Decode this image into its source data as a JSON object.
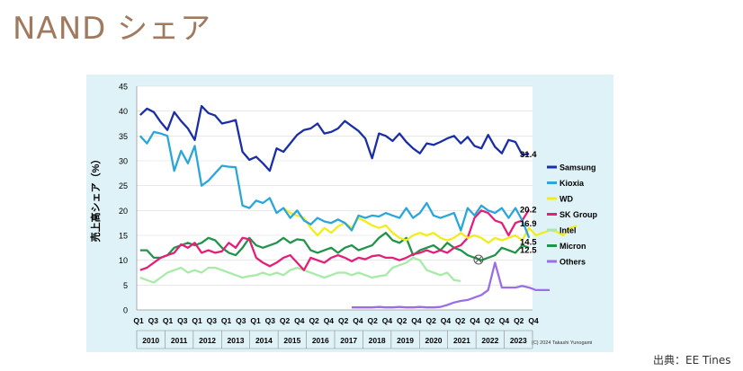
{
  "page": {
    "title": "NAND シェア",
    "source": "出典：EE Tines"
  },
  "chart_data": {
    "type": "line",
    "title": "NAND シェア",
    "ylabel": "売上高シェア（%）",
    "ylim": [
      0,
      45
    ],
    "yticks": [
      "0",
      "5",
      "10",
      "15",
      "20",
      "25",
      "30",
      "35",
      "40",
      "45"
    ],
    "quarter_labels": [
      "Q1",
      "Q3",
      "Q1",
      "Q3",
      "Q1",
      "Q3",
      "Q1",
      "Q3",
      "Q1",
      "Q3",
      "Q2",
      "Q4",
      "Q2",
      "Q4",
      "Q2",
      "Q4",
      "Q2",
      "Q4",
      "Q2",
      "Q4",
      "Q2",
      "Q4",
      "Q2",
      "Q4",
      "Q2",
      "Q4",
      "Q2",
      "Q4"
    ],
    "years": [
      "2010",
      "2011",
      "2012",
      "2013",
      "2014",
      "2015",
      "2016",
      "2017",
      "2018",
      "2019",
      "2020",
      "2021",
      "2022",
      "2023"
    ],
    "copyright": "(C) 2024 Takashi Yunogami",
    "legend_position": "right",
    "grid": true,
    "series": [
      {
        "name": "Samsung",
        "color": "#1a2ea8",
        "end_label": "31.4",
        "start": 0,
        "values": [
          39.2,
          40.5,
          39.8,
          37.8,
          36.2,
          39.8,
          38.0,
          36.5,
          34.2,
          41.0,
          39.6,
          39.1,
          37.5,
          37.8,
          38.2,
          31.8,
          30.2,
          30.8,
          29.5,
          28.0,
          32.5,
          31.8,
          33.5,
          35.2,
          36.2,
          36.5,
          37.5,
          35.5,
          35.8,
          36.5,
          38.0,
          37.0,
          36.0,
          34.5,
          30.5,
          35.5,
          35.0,
          34.0,
          35.5,
          33.8,
          32.5,
          31.5,
          33.5,
          33.2,
          33.8,
          34.5,
          35.0,
          33.5,
          34.8,
          33.0,
          32.5,
          35.2,
          32.8,
          31.5,
          34.2,
          33.8,
          31.2,
          31.4
        ]
      },
      {
        "name": "Kioxia",
        "color": "#2aa6d9",
        "end_label": "14.5",
        "start": 0,
        "values": [
          35.0,
          33.5,
          35.8,
          35.5,
          35.0,
          28.0,
          32.0,
          29.5,
          33.0,
          25.0,
          26.0,
          27.5,
          29.0,
          28.8,
          28.7,
          21.0,
          20.5,
          22.0,
          21.5,
          22.5,
          19.5,
          20.5,
          18.5,
          20.0,
          18.0,
          17.2,
          18.5,
          17.8,
          17.5,
          18.2,
          17.5,
          16.0,
          19.0,
          18.5,
          19.0,
          18.8,
          19.5,
          19.0,
          18.5,
          20.5,
          18.5,
          19.5,
          21.5,
          19.0,
          18.5,
          19.0,
          19.5,
          16.0,
          20.5,
          19.0,
          21.0,
          20.0,
          19.5,
          20.5,
          18.5,
          20.5,
          18.0,
          14.5
        ]
      },
      {
        "name": "WD",
        "color": "#f0ee1a",
        "end_label": "16.9",
        "start": 21,
        "values": [
          20.5,
          19.5,
          19.0,
          18.5,
          16.5,
          15.0,
          16.5,
          15.5,
          16.8,
          17.5,
          16.5,
          18.5,
          17.8,
          17.0,
          16.5,
          17.0,
          15.5,
          14.5,
          14.0,
          15.0,
          15.5,
          15.0,
          15.5,
          14.5,
          14.0,
          14.5,
          15.5,
          14.5,
          15.0,
          14.5,
          13.5,
          14.5,
          14.0,
          14.5,
          15.0,
          14.0,
          16.5,
          15.0,
          15.5,
          16.0,
          15.8,
          15.0,
          16.5,
          16.9
        ]
      },
      {
        "name": "SK Group",
        "color": "#e51e78",
        "end_label": "20.2",
        "start": 0,
        "values": [
          8.0,
          8.5,
          9.5,
          10.5,
          11.0,
          11.5,
          13.2,
          12.5,
          13.5,
          11.5,
          12.0,
          11.5,
          11.8,
          13.5,
          12.5,
          14.5,
          14.2,
          10.5,
          9.5,
          8.8,
          9.5,
          10.5,
          11.0,
          9.5,
          8.0,
          10.5,
          10.0,
          9.5,
          10.5,
          11.0,
          10.5,
          9.8,
          10.5,
          10.2,
          10.8,
          11.0,
          10.5,
          10.5,
          10.0,
          10.5,
          11.2,
          11.5,
          12.0,
          11.5,
          12.0,
          11.5,
          12.5,
          13.0,
          14.5,
          18.5,
          20.0,
          19.5,
          18.0,
          17.5,
          15.0,
          17.5,
          18.0,
          20.2
        ]
      },
      {
        "name": "Intel",
        "color": "#a8eba8",
        "end_label": "",
        "start": 0,
        "values": [
          6.5,
          6.0,
          5.5,
          6.5,
          7.5,
          8.0,
          8.5,
          7.5,
          8.0,
          7.5,
          8.5,
          8.5,
          8.0,
          7.5,
          7.0,
          6.5,
          6.8,
          7.0,
          7.5,
          7.0,
          7.5,
          7.0,
          8.0,
          8.5,
          8.0,
          7.5,
          7.0,
          6.5,
          7.0,
          7.5,
          7.5,
          7.0,
          7.5,
          7.0,
          6.5,
          6.8,
          7.0,
          8.5,
          9.0,
          9.5,
          10.5,
          10.0,
          8.0,
          7.5,
          7.0,
          7.5,
          6.0,
          5.8
        ]
      },
      {
        "name": "Micron",
        "color": "#21944a",
        "end_label": "12.5",
        "start": 0,
        "values": [
          12.0,
          12.0,
          10.5,
          10.5,
          11.0,
          12.5,
          13.0,
          13.5,
          13.0,
          13.5,
          14.5,
          14.0,
          12.5,
          11.5,
          11.0,
          12.5,
          14.5,
          13.0,
          12.5,
          13.0,
          13.5,
          14.5,
          13.5,
          14.2,
          14.0,
          12.0,
          11.5,
          12.0,
          12.5,
          11.5,
          12.5,
          13.0,
          12.0,
          12.5,
          13.0,
          14.5,
          15.5,
          14.0,
          13.5,
          14.5,
          11.0,
          12.0,
          12.5,
          13.0,
          12.0,
          13.5,
          12.5,
          12.0,
          11.0,
          10.5,
          10.0,
          10.5,
          11.0,
          12.5,
          12.0,
          11.5,
          13.0,
          12.5
        ]
      },
      {
        "name": "Others",
        "color": "#9b6ee8",
        "end_label": "",
        "start": 31,
        "values": [
          0.5,
          0.5,
          0.5,
          0.5,
          0.6,
          0.5,
          0.5,
          0.6,
          0.5,
          0.5,
          0.6,
          0.5,
          0.5,
          0.6,
          1.0,
          1.5,
          1.8,
          2.0,
          2.5,
          3.0,
          4.0,
          9.5,
          4.5,
          4.5,
          4.5,
          4.8,
          4.5,
          4.0,
          4.0,
          4.0
        ]
      }
    ]
  }
}
